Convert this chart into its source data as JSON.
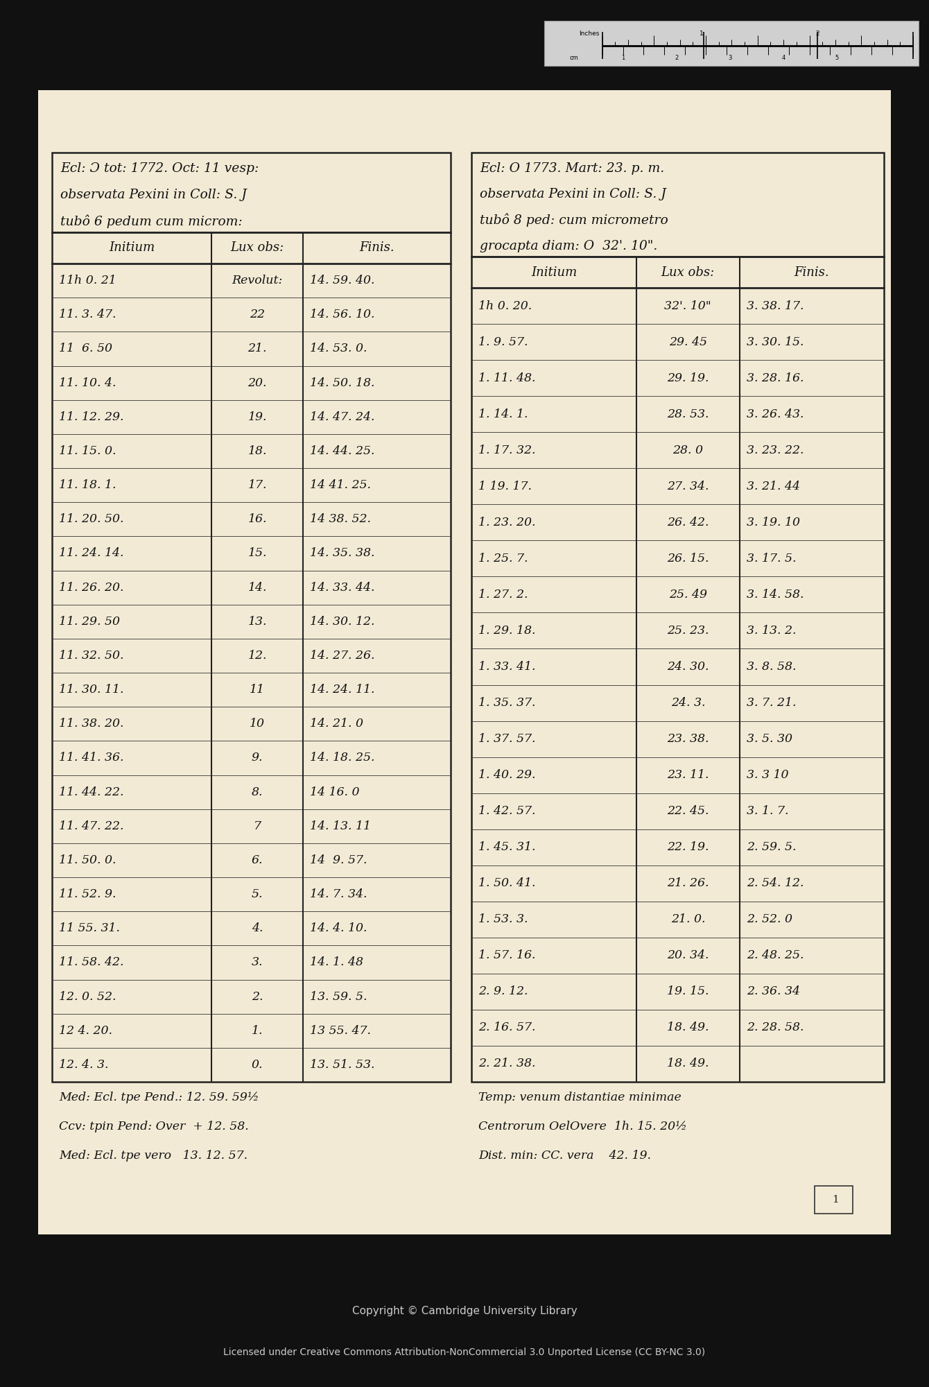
{
  "background_color": "#111111",
  "paper_color": "#f2ead5",
  "copyright_text": "Copyright © Cambridge University Library",
  "license_text": "Licensed under Creative Commons Attribution-NonCommercial 3.0 Unported License (CC BY-NC 3.0)",
  "left_header": [
    "Ecl: Ɔ tot: 1772. Oct: 11 vesp:",
    "observata Pexini in Coll: S. J",
    "tubô 6 pedum cum microm:"
  ],
  "left_col_headers": [
    "Initium",
    "Lux obs:",
    "Finis."
  ],
  "left_rows": [
    [
      "11h 0. 21",
      "Revolut:",
      "14. 59. 40."
    ],
    [
      "11. 3. 47.",
      "22",
      "14. 56. 10."
    ],
    [
      "11  6. 50",
      "21.",
      "14. 53. 0."
    ],
    [
      "11. 10. 4.",
      "20.",
      "14. 50. 18."
    ],
    [
      "11. 12. 29.",
      "19.",
      "14. 47. 24."
    ],
    [
      "11. 15. 0.",
      "18.",
      "14. 44. 25."
    ],
    [
      "11. 18. 1.",
      "17.",
      "14 41. 25."
    ],
    [
      "11. 20. 50.",
      "16.",
      "14 38. 52."
    ],
    [
      "11. 24. 14.",
      "15.",
      "14. 35. 38."
    ],
    [
      "11. 26. 20.",
      "14.",
      "14. 33. 44."
    ],
    [
      "11. 29. 50",
      "13.",
      "14. 30. 12."
    ],
    [
      "11. 32. 50.",
      "12.",
      "14. 27. 26."
    ],
    [
      "11. 30. 11.",
      "11",
      "14. 24. 11."
    ],
    [
      "11. 38. 20.",
      "10",
      "14. 21. 0"
    ],
    [
      "11. 41. 36.",
      "9.",
      "14. 18. 25."
    ],
    [
      "11. 44. 22.",
      "8.",
      "14 16. 0"
    ],
    [
      "11. 47. 22.",
      "7",
      "14. 13. 11"
    ],
    [
      "11. 50. 0.",
      "6.",
      "14  9. 57."
    ],
    [
      "11. 52. 9.",
      "5.",
      "14. 7. 34."
    ],
    [
      "11 55. 31.",
      "4.",
      "14. 4. 10."
    ],
    [
      "11. 58. 42.",
      "3.",
      "14. 1. 48"
    ],
    [
      "12. 0. 52.",
      "2.",
      "13. 59. 5."
    ],
    [
      "12 4. 20.",
      "1.",
      "13 55. 47."
    ],
    [
      "12. 4. 3.",
      "0.",
      "13. 51. 53."
    ]
  ],
  "left_footer": [
    "Med: Ecl. tpe Pend.: 12. 59. 59½",
    "Ccv: tpin Pend: Over  + 12. 58.",
    "Med: Ecl. tpe vero   13. 12. 57."
  ],
  "right_header": [
    "Ecl: O 1773. Mart: 23. p. m.",
    "observata Pexini in Coll: S. J",
    "tubô 8 ped: cum micrometro",
    "grocapta diam: O  32'. 10\"."
  ],
  "right_col_headers": [
    "Initium",
    "Lux obs:",
    "Finis."
  ],
  "right_rows": [
    [
      "1h 0. 20.",
      "32'. 10\"",
      "3. 38. 17."
    ],
    [
      "1. 9. 57.",
      "29. 45",
      "3. 30. 15."
    ],
    [
      "1. 11. 48.",
      "29. 19.",
      "3. 28. 16."
    ],
    [
      "1. 14. 1.",
      "28. 53.",
      "3. 26. 43."
    ],
    [
      "1. 17. 32.",
      "28. 0",
      "3. 23. 22."
    ],
    [
      "1 19. 17.",
      "27. 34.",
      "3. 21. 44"
    ],
    [
      "1. 23. 20.",
      "26. 42.",
      "3. 19. 10"
    ],
    [
      "1. 25. 7.",
      "26. 15.",
      "3. 17. 5."
    ],
    [
      "1. 27. 2.",
      "25. 49",
      "3. 14. 58."
    ],
    [
      "1. 29. 18.",
      "25. 23.",
      "3. 13. 2."
    ],
    [
      "1. 33. 41.",
      "24. 30.",
      "3. 8. 58."
    ],
    [
      "1. 35. 37.",
      "24. 3.",
      "3. 7. 21."
    ],
    [
      "1. 37. 57.",
      "23. 38.",
      "3. 5. 30"
    ],
    [
      "1. 40. 29.",
      "23. 11.",
      "3. 3 10"
    ],
    [
      "1. 42. 57.",
      "22. 45.",
      "3. 1. 7."
    ],
    [
      "1. 45. 31.",
      "22. 19.",
      "2. 59. 5."
    ],
    [
      "1. 50. 41.",
      "21. 26.",
      "2. 54. 12."
    ],
    [
      "1. 53. 3.",
      "21. 0.",
      "2. 52. 0"
    ],
    [
      "1. 57. 16.",
      "20. 34.",
      "2. 48. 25."
    ],
    [
      "2. 9. 12.",
      "19. 15.",
      "2. 36. 34"
    ],
    [
      "2. 16. 57.",
      "18. 49.",
      "2. 28. 58."
    ],
    [
      "2. 21. 38.",
      "18. 49.",
      ""
    ]
  ],
  "right_footer": [
    "Temp: venum distantiae minimae",
    "Centrorum OelOvere  1h. 15. 20½",
    "Dist. min: CC. vera    42. 19."
  ],
  "page_number": "1"
}
